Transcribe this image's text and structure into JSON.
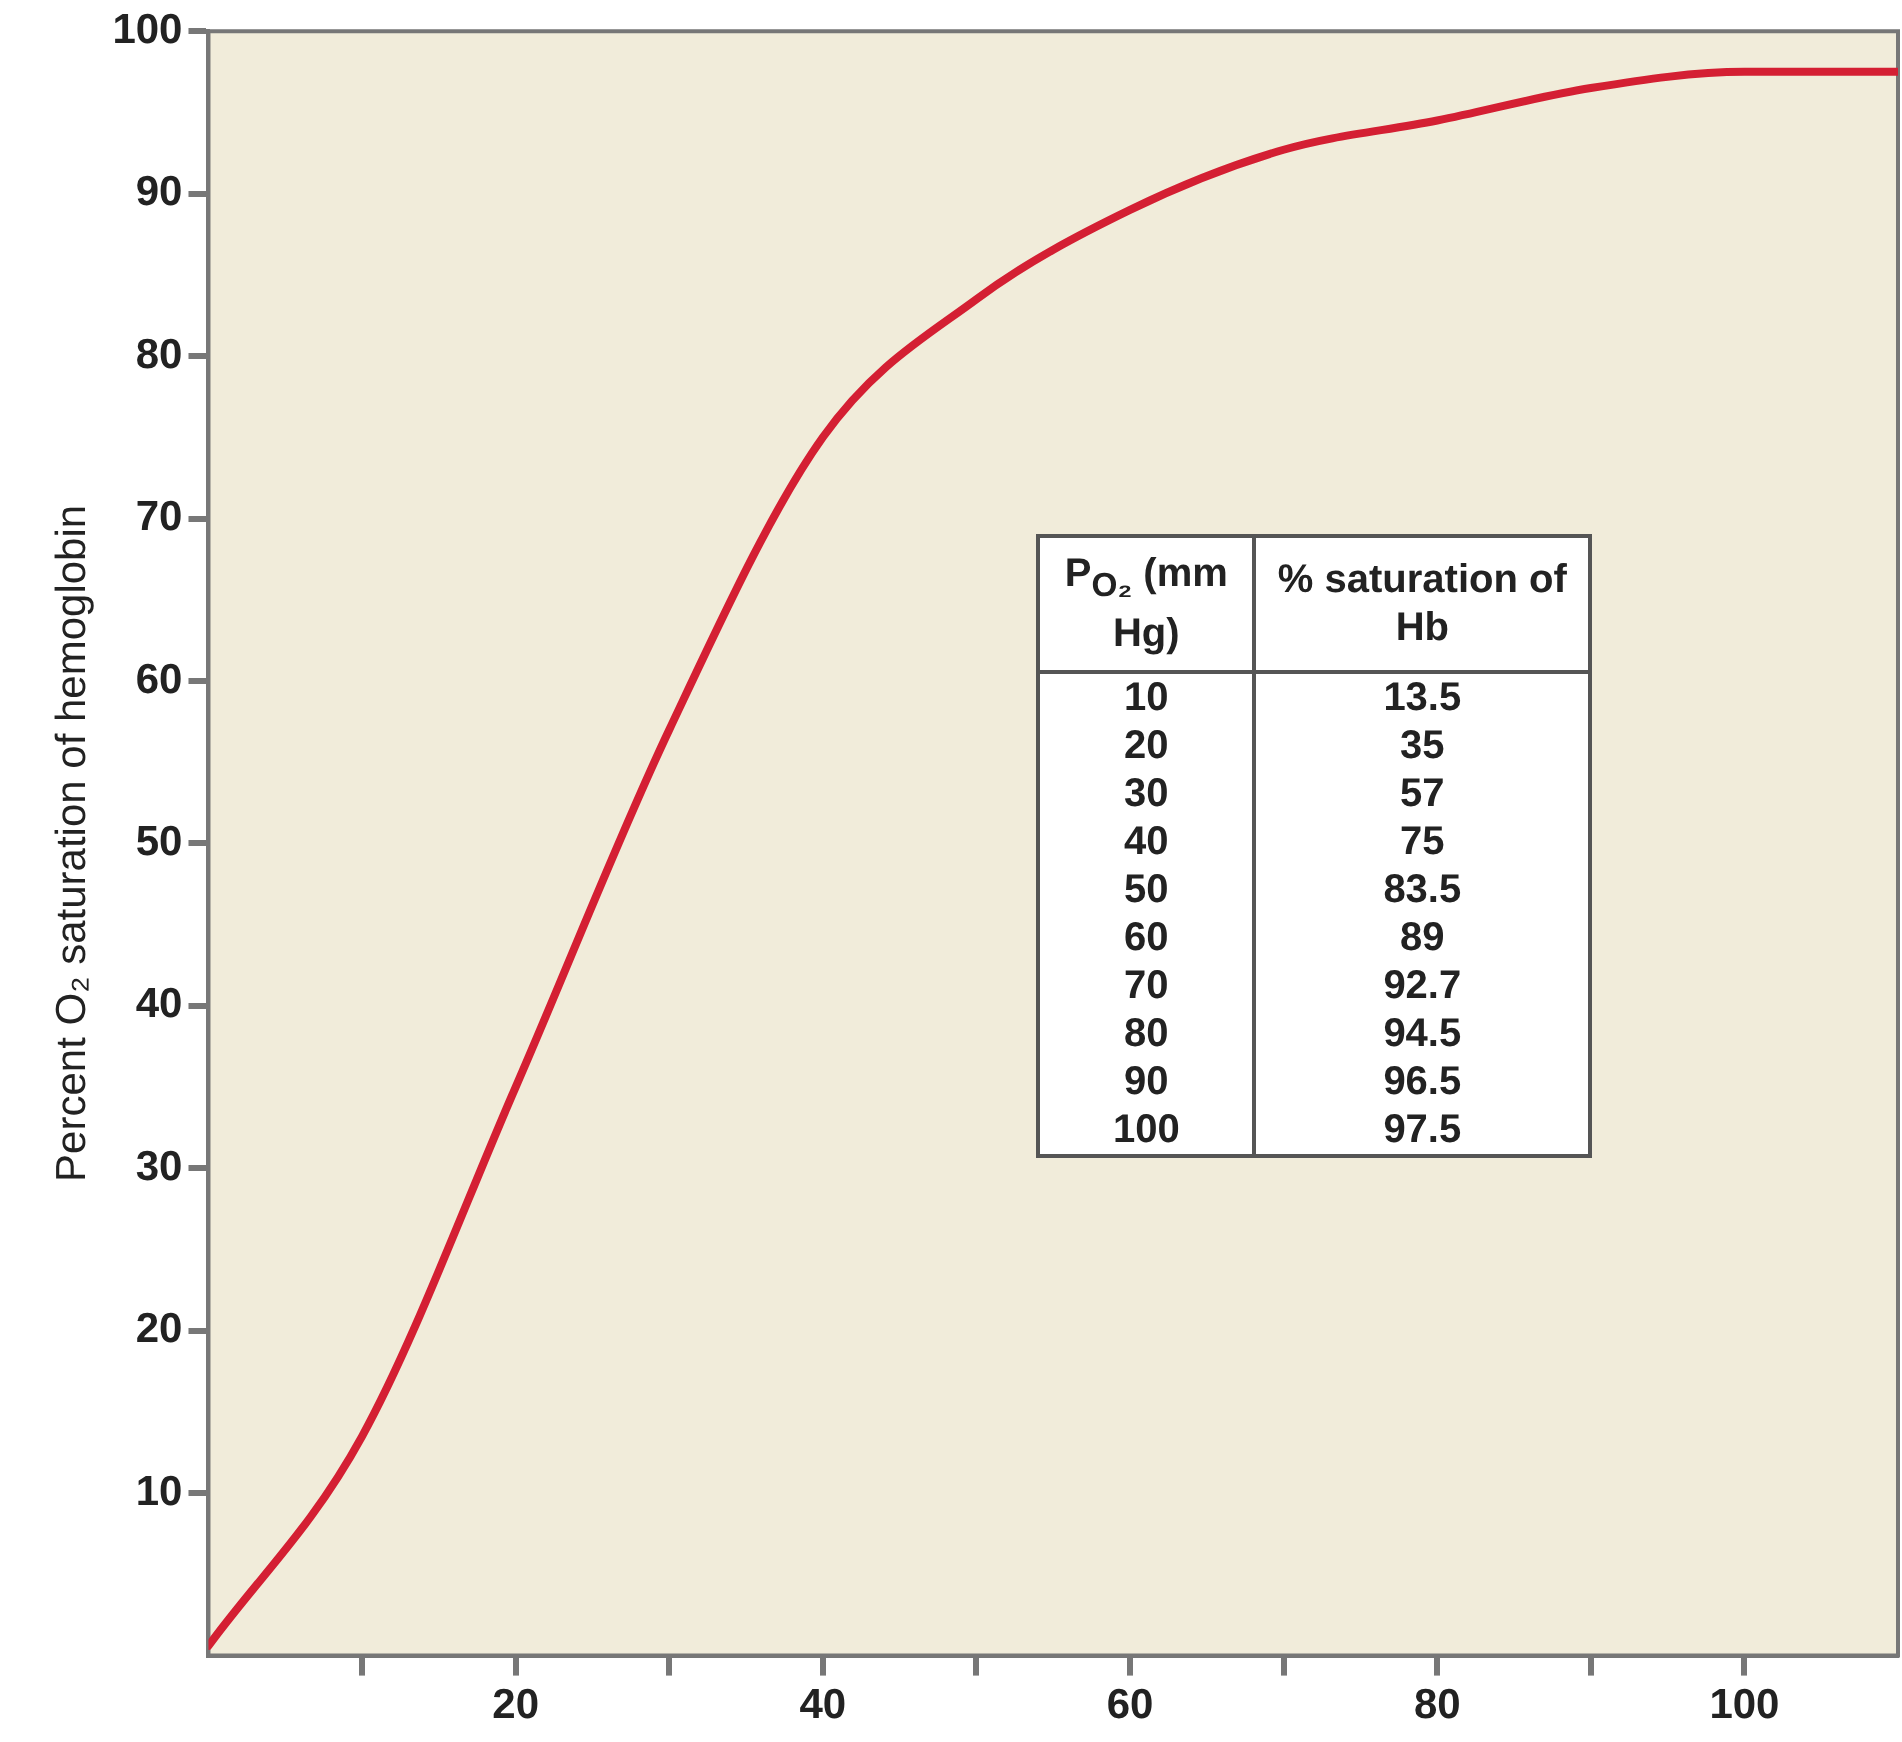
{
  "chart_data": {
    "type": "line",
    "ylabel": "Percent O₂ saturation of hemoglobin",
    "annotations": [
      "P$_{O₂}$ (mm Hg)",
      "% saturation of Hb",
      "10",
      "13.5",
      "20",
      "35",
      "30",
      "57",
      "40",
      "75",
      "50",
      "83.5",
      "60",
      "89",
      "70",
      "92.7",
      "80",
      "94.5",
      "90",
      "96.5",
      "100",
      "97.5"
    ],
    "x": [
      0,
      10,
      20,
      30,
      40,
      50,
      60,
      70,
      80,
      90,
      100,
      110
    ],
    "series": [
      {
        "color": "#d41f33",
        "values": [
          0.6,
          13.5,
          35,
          57,
          75,
          83.5,
          89,
          92.7,
          94.5,
          96.5,
          97.5,
          97.5
        ]
      }
    ],
    "xlim": [
      0,
      110
    ],
    "xticks": [
      {
        "value": 10,
        "label": null
      },
      20,
      {
        "value": 30,
        "label": null
      },
      40,
      {
        "value": 50,
        "label": null
      },
      60,
      {
        "value": 70,
        "label": null
      },
      80,
      {
        "value": 90,
        "label": null
      },
      100
    ],
    "ylim": [
      0,
      100
    ],
    "yticks": [
      10,
      20,
      30,
      40,
      50,
      60,
      70,
      80,
      90,
      100
    ],
    "grid": false,
    "legend": false,
    "marker": "none",
    "line_style": "solid"
  }
}
